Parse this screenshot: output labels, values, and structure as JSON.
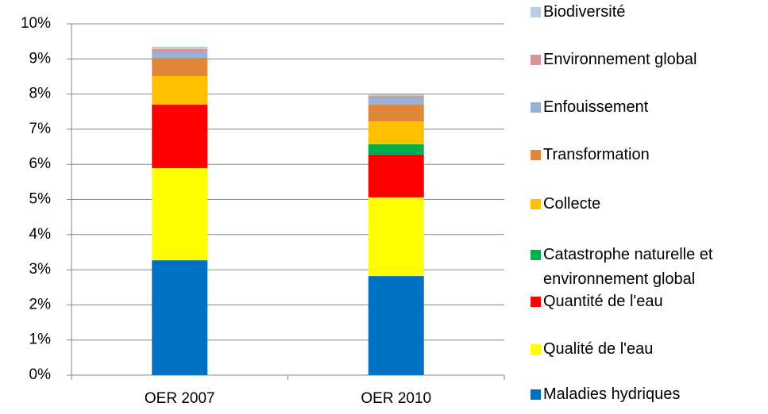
{
  "chart_data": {
    "type": "stacked_bar",
    "categories": [
      "OER 2007",
      "OER 2010"
    ],
    "series": [
      {
        "name": "Maladies hydriques",
        "color": "#0070c0",
        "values": [
          3.27,
          2.82
        ]
      },
      {
        "name": "Qualité de l'eau",
        "color": "#ffff00",
        "values": [
          2.62,
          2.24
        ]
      },
      {
        "name": "Quantité de l'eau",
        "color": "#ff0000",
        "values": [
          1.81,
          1.22
        ]
      },
      {
        "name": "Catastrophe naturelle et environnement global",
        "color": "#00b050",
        "values": [
          0,
          0.29
        ]
      },
      {
        "name": "Collecte",
        "color": "#ffc000",
        "values": [
          0.81,
          0.65
        ]
      },
      {
        "name": "Transformation",
        "color": "#e0873a",
        "values": [
          0.52,
          0.48
        ]
      },
      {
        "name": "Enfouissement",
        "color": "#95b3d7",
        "values": [
          0.18,
          0.18
        ]
      },
      {
        "name": "Environnement global",
        "color": "#d99694",
        "values": [
          0.07,
          0.07
        ]
      },
      {
        "name": "Biodiversité",
        "color": "#b9cde5",
        "values": [
          0.07,
          0.04
        ]
      }
    ],
    "ylim": [
      0,
      10
    ],
    "yticks": [
      {
        "value": 0,
        "label": "0%"
      },
      {
        "value": 1,
        "label": "1%"
      },
      {
        "value": 2,
        "label": "2%"
      },
      {
        "value": 3,
        "label": "3%"
      },
      {
        "value": 4,
        "label": "4%"
      },
      {
        "value": 5,
        "label": "5%"
      },
      {
        "value": 6,
        "label": "6%"
      },
      {
        "value": 7,
        "label": "7%"
      },
      {
        "value": 8,
        "label": "8%"
      },
      {
        "value": 9,
        "label": "9%"
      },
      {
        "value": 10,
        "label": "10%"
      }
    ],
    "grid": true,
    "legend": "right"
  }
}
